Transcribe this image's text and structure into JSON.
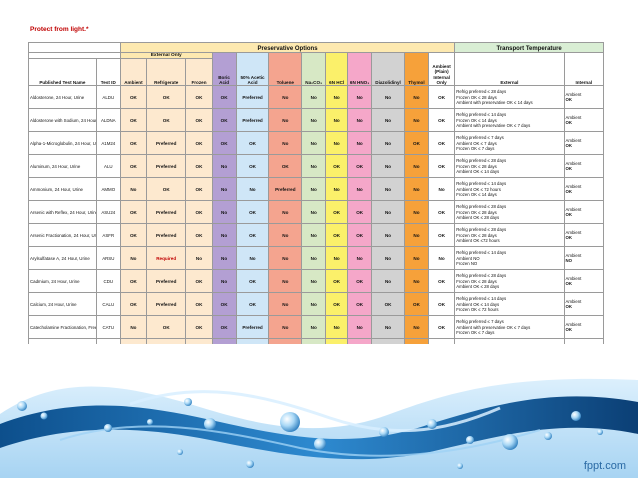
{
  "note": "Protect from light.*",
  "groups": {
    "preservative": "Preservative Options",
    "transport": "Transport Temperature",
    "external_only": "External Only"
  },
  "headers": {
    "name": "Published Test Name",
    "test_id": "Test ID",
    "ambient": "Ambient",
    "refrigerate": "Refrigerate",
    "frozen": "Frozen",
    "boric": "Boric Acid",
    "acetic": "50% Acetic Acid",
    "toluene": "Toluene",
    "naco": "Na₂CO₃",
    "hcl": "6N HCl",
    "hno": "6N HNO₃",
    "diazo": "Diazolidinyl",
    "thymol": "Thymol",
    "plain": "Ambient (Plain) Internal Only",
    "external": "External",
    "internal": "Internal"
  },
  "rows": [
    {
      "name": "Aldosterone, 24 Hour, Urine",
      "id": "ALDU",
      "v": [
        "OK",
        "OK",
        "OK",
        "OK",
        "Preferred",
        "No",
        "No",
        "No",
        "No",
        "No",
        "No",
        "OK"
      ],
      "ext": [
        "Refrig preferred ≤ 28 days",
        "Frozen OK ≤ 28 days",
        "Ambient with preservative OK ≤ 14 days"
      ],
      "int": [
        "Ambient",
        "OK"
      ]
    },
    {
      "name": "Aldosterone with Sodium, 24 Hour, Urine",
      "id": "ALDNA",
      "v": [
        "OK",
        "OK",
        "OK",
        "OK",
        "Preferred",
        "No",
        "No",
        "No",
        "No",
        "No",
        "No",
        "OK"
      ],
      "ext": [
        "Refrig preferred ≤ 14 days",
        "Frozen OK ≤ 14 days",
        "Ambient with preservative OK ≤ 7 days"
      ],
      "int": [
        "Ambient",
        "OK"
      ]
    },
    {
      "name": "Alpha-1-Microglobulin, 24 Hour, Urine",
      "id": "A1M24",
      "v": [
        "OK",
        "Preferred",
        "OK",
        "OK",
        "OK",
        "No",
        "No",
        "No",
        "No",
        "No",
        "OK",
        "OK"
      ],
      "ext": [
        "Refrig preferred ≤ 7 days",
        "Ambient OK ≤ 7 days",
        "Frozen OK ≤ 7 days"
      ],
      "int": [
        "Ambient",
        "OK"
      ]
    },
    {
      "name": "Aluminum, 24 Hour, Urine",
      "id": "ALU",
      "v": [
        "OK",
        "Preferred",
        "OK",
        "No",
        "OK",
        "OK",
        "No",
        "OK",
        "OK",
        "No",
        "No",
        "OK"
      ],
      "ext": [
        "Refrig preferred ≤ 28 days",
        "Frozen OK ≤ 28 days",
        "Ambient OK ≤ 14 days"
      ],
      "int": [
        "Ambient",
        "OK"
      ]
    },
    {
      "name": "Ammonium, 24 Hour, Urine",
      "id": "AMMO",
      "v": [
        "No",
        "OK",
        "OK",
        "No",
        "No",
        "Preferred",
        "No",
        "No",
        "No",
        "No",
        "No",
        "No"
      ],
      "ext": [
        "Refrig preferred ≤ 14 days",
        "Ambient OK ≤ 72 hours",
        "Frozen OK ≤ 14 days"
      ],
      "int": [
        "Ambient",
        "OK"
      ]
    },
    {
      "name": "Arsenic with Reflex, 24 Hour, Urine",
      "id": "ASU24",
      "v": [
        "OK",
        "Preferred",
        "OK",
        "No",
        "OK",
        "No",
        "No",
        "OK",
        "OK",
        "No",
        "No",
        "OK"
      ],
      "ext": [
        "Refrig preferred ≤ 28 days",
        "Frozen OK ≤ 28 days",
        "Ambient OK ≤ 28 days"
      ],
      "int": [
        "Ambient",
        "OK"
      ]
    },
    {
      "name": "Arsenic Fractionation, 24 Hour, Urine",
      "id": "ASFR",
      "v": [
        "OK",
        "Preferred",
        "OK",
        "No",
        "OK",
        "No",
        "No",
        "OK",
        "OK",
        "No",
        "No",
        "OK"
      ],
      "ext": [
        "Refrig preferred ≤ 28 days",
        "Frozen OK ≤ 28 days",
        "Ambient OK ≤72 hours"
      ],
      "int": [
        "Ambient",
        "OK"
      ]
    },
    {
      "name": "Arylsulfatase A, 24 Hour, Urine",
      "id": "ARSU",
      "v": [
        "No",
        "Required",
        "No",
        "No",
        "No",
        "No",
        "No",
        "No",
        "No",
        "No",
        "No",
        "No"
      ],
      "ext": [
        "Refrig preferred ≤ 14 days",
        "Ambient NO",
        "Frozen NO"
      ],
      "int": [
        "Ambient",
        "NO"
      ]
    },
    {
      "name": "Cadmium, 24 Hour, Urine",
      "id": "CDU",
      "v": [
        "OK",
        "Preferred",
        "OK",
        "No",
        "OK",
        "No",
        "No",
        "OK",
        "OK",
        "No",
        "No",
        "OK"
      ],
      "ext": [
        "Refrig preferred ≤ 28 days",
        "Frozen OK ≤ 28 days",
        "Ambient OK ≤ 28 days"
      ],
      "int": [
        "Ambient",
        "OK"
      ]
    },
    {
      "name": "Calcium, 24 Hour, Urine",
      "id": "CALU",
      "v": [
        "OK",
        "Preferred",
        "OK",
        "OK",
        "OK",
        "No",
        "No",
        "OK",
        "OK",
        "OK",
        "OK",
        "OK"
      ],
      "ext": [
        "Refrig preferred ≤ 14 days",
        "Ambient OK ≤ 14 days",
        "Frozen OK ≤ 72 hours"
      ],
      "int": [
        "Ambient",
        "OK"
      ]
    },
    {
      "name": "Catecholamine Fractionation, Free, 24 Hour, Urine",
      "id": "CATU",
      "v": [
        "No",
        "OK",
        "OK",
        "OK",
        "Preferred",
        "No",
        "No",
        "No",
        "No",
        "No",
        "No",
        "OK"
      ],
      "ext": [
        "Refrig preferred ≤ 7 days",
        "Ambient with preservative OK ≤ 7 days",
        "Frozen OK ≤ 7 days"
      ],
      "int": [
        "Ambient",
        "OK"
      ]
    },
    {
      "name": "",
      "id": "",
      "v": [
        "",
        "",
        "",
        "",
        "",
        "",
        "",
        "",
        "",
        "",
        "",
        ""
      ],
      "ext": [
        "Refrig preferred ≤ 14 days",
        "",
        ""
      ],
      "int": [
        "Ambient",
        ""
      ]
    }
  ],
  "brand": "fppt.com",
  "colors": {
    "accent_blue": "#1f76b9",
    "required_red": "#c00000"
  }
}
